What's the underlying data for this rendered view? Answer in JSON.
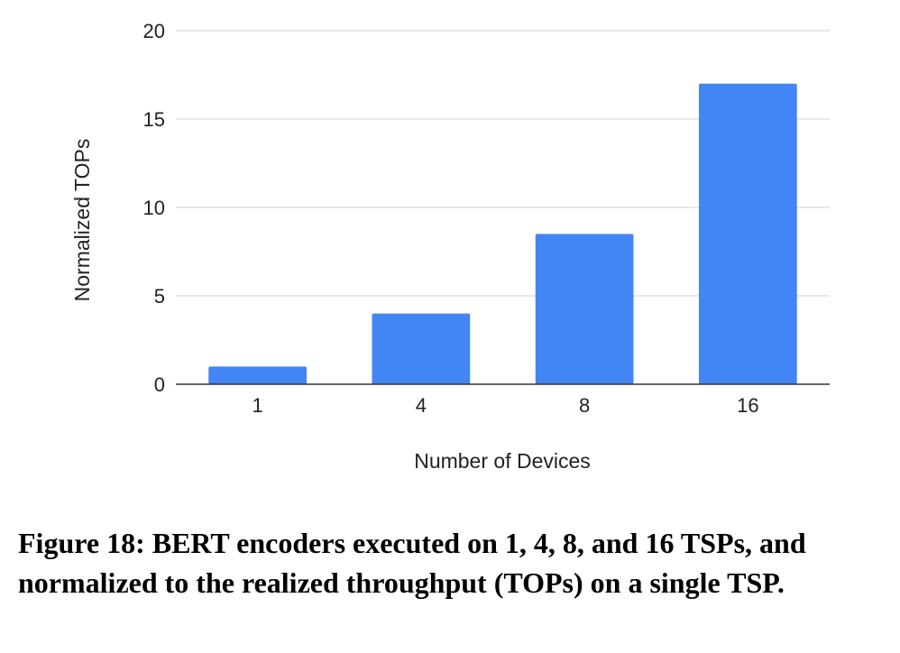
{
  "chart_data": {
    "type": "bar",
    "categories": [
      "1",
      "4",
      "8",
      "16"
    ],
    "values": [
      1,
      4,
      8.5,
      17
    ],
    "xlabel": "Number of Devices",
    "ylabel": "Normalized TOPs",
    "ylim": [
      0,
      20
    ],
    "yticks": [
      "0",
      "5",
      "10",
      "15",
      "20"
    ],
    "grid": true,
    "bar_color": "#4285f4"
  },
  "caption": "Figure 18: BERT encoders executed on 1, 4, 8, and 16 TSPs, and normalized to the realized throughput (TOPs) on a single TSP."
}
